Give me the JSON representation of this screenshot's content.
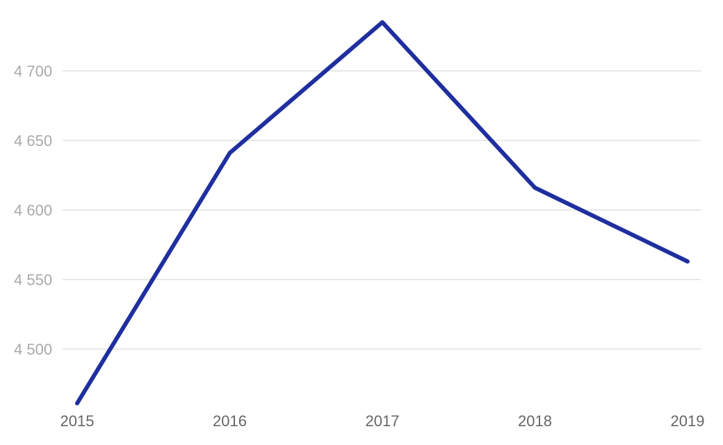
{
  "chart_data": {
    "type": "line",
    "x": [
      "2015",
      "2016",
      "2017",
      "2018",
      "2019"
    ],
    "series": [
      {
        "values": [
          4461,
          4641,
          4735,
          4616,
          4563
        ],
        "color": "#1f2f9f"
      }
    ],
    "y_ticks": [
      4500,
      4550,
      4600,
      4650,
      4700
    ],
    "y_tick_labels": [
      "4 500",
      "4 550",
      "4 600",
      "4 650",
      "4 700"
    ],
    "ylim": [
      4461,
      4735
    ],
    "grid": "horizontal",
    "legend": "none",
    "colors": {
      "gridline": "#e0e0e0",
      "y_tick_text": "#a9a9a9",
      "x_tick_text": "#666666"
    }
  }
}
